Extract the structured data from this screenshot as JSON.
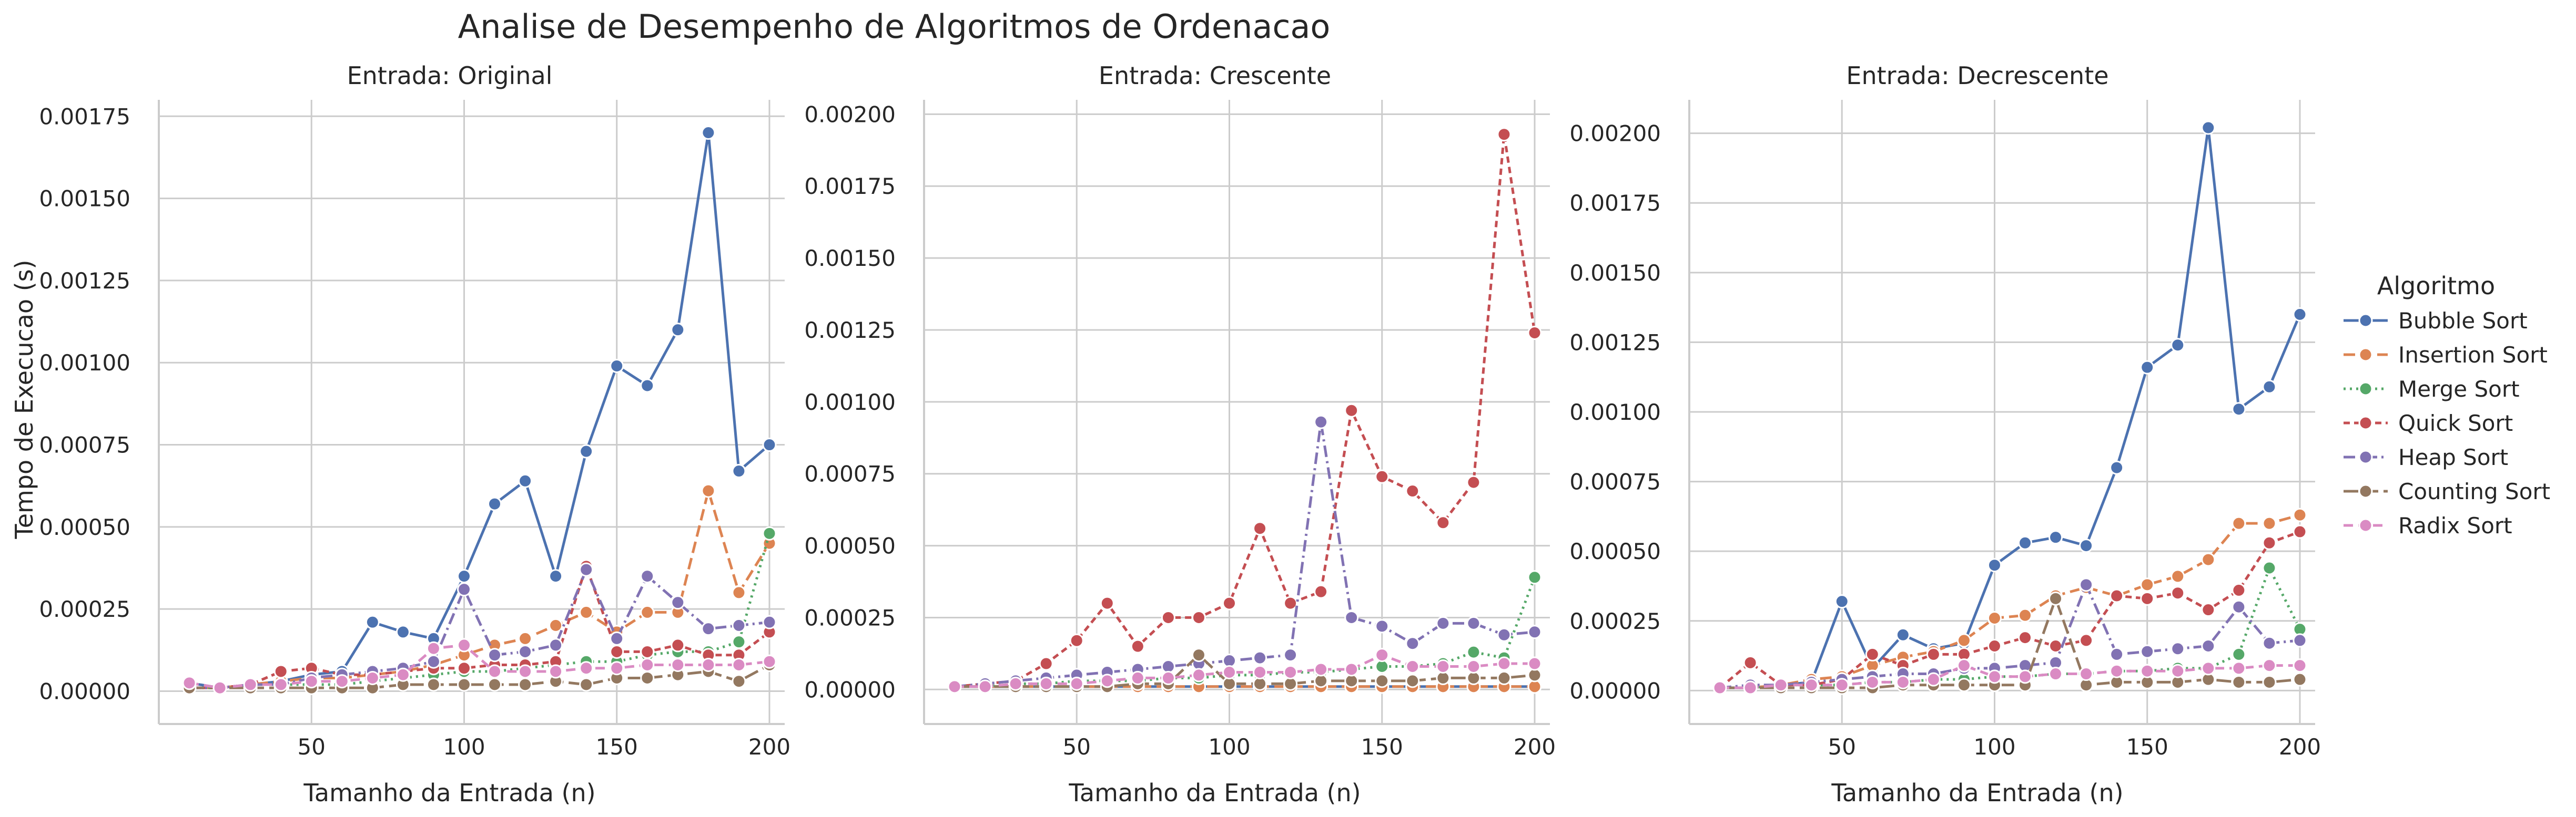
{
  "figure": {
    "title": "Analise de Desempenho de Algoritmos de Ordenacao",
    "ylabel": "Tempo de Execucao (s)"
  },
  "legend": {
    "title": "Algoritmo",
    "items": [
      {
        "label": "Bubble Sort",
        "color": "#4c72b0",
        "dash": "solid"
      },
      {
        "label": "Insertion Sort",
        "color": "#dd8452",
        "dash": "dashed"
      },
      {
        "label": "Merge Sort",
        "color": "#55a868",
        "dash": "dotted"
      },
      {
        "label": "Quick Sort",
        "color": "#c44e52",
        "dash": "dense-dash"
      },
      {
        "label": "Heap Sort",
        "color": "#8172b3",
        "dash": "dashdot"
      },
      {
        "label": "Counting Sort",
        "color": "#937860",
        "dash": "long-dash"
      },
      {
        "label": "Radix Sort",
        "color": "#da8bc3",
        "dash": "dash"
      }
    ]
  },
  "chart_data": [
    {
      "type": "line",
      "title": "Entrada: Original",
      "xlabel": "Tamanho da Entrada (n)",
      "ylabel": "Tempo de Execucao (s)",
      "xlim": [
        0,
        205
      ],
      "ylim": [
        -0.0001,
        0.0018
      ],
      "xticks": [
        50,
        100,
        150,
        200
      ],
      "xtick_labels": [
        "50",
        "100",
        "150",
        "200"
      ],
      "yticks": [
        0,
        0.00025,
        0.0005,
        0.00075,
        0.001,
        0.00125,
        0.0015,
        0.00175
      ],
      "ytick_labels": [
        "0.00000",
        "0.00025",
        "0.00050",
        "0.00075",
        "0.00100",
        "0.00125",
        "0.00150",
        "0.00175"
      ],
      "grid": true,
      "x": [
        10,
        20,
        30,
        40,
        50,
        60,
        70,
        80,
        90,
        100,
        110,
        120,
        130,
        140,
        150,
        160,
        170,
        180,
        190,
        200
      ],
      "series": [
        {
          "name": "Bubble Sort",
          "values": [
            2.5e-05,
            1e-05,
            2e-05,
            3e-05,
            5e-05,
            6e-05,
            0.00021,
            0.00018,
            0.00016,
            0.00035,
            0.00057,
            0.00064,
            0.00035,
            0.00073,
            0.00099,
            0.00093,
            0.0011,
            0.0017,
            0.00067,
            0.00075
          ]
        },
        {
          "name": "Insertion Sort",
          "values": [
            1e-05,
            1e-05,
            2e-05,
            3e-05,
            4e-05,
            4e-05,
            5e-05,
            6e-05,
            8e-05,
            0.00011,
            0.00014,
            0.00016,
            0.0002,
            0.00024,
            0.00018,
            0.00024,
            0.00024,
            0.00061,
            0.0003,
            0.00045
          ]
        },
        {
          "name": "Merge Sort",
          "values": [
            1e-05,
            1e-05,
            2e-05,
            2e-05,
            2e-05,
            2e-05,
            3e-05,
            4e-05,
            5e-05,
            6e-05,
            6e-05,
            7e-05,
            8e-05,
            9e-05,
            9e-05,
            0.00011,
            0.00012,
            0.00012,
            0.00015,
            0.00048
          ]
        },
        {
          "name": "Quick Sort",
          "values": [
            1e-05,
            1e-05,
            2e-05,
            6e-05,
            7e-05,
            5e-05,
            5e-05,
            6e-05,
            7e-05,
            7e-05,
            8e-05,
            8e-05,
            9e-05,
            0.00038,
            0.00012,
            0.00012,
            0.00014,
            0.00011,
            0.00011,
            0.00018
          ]
        },
        {
          "name": "Heap Sort",
          "values": [
            1e-05,
            1e-05,
            2e-05,
            2e-05,
            4e-05,
            5e-05,
            6e-05,
            7e-05,
            9e-05,
            0.00031,
            0.00011,
            0.00012,
            0.00014,
            0.00037,
            0.00016,
            0.00035,
            0.00027,
            0.00019,
            0.0002,
            0.00021
          ]
        },
        {
          "name": "Counting Sort",
          "values": [
            1e-05,
            1e-05,
            1e-05,
            1e-05,
            1e-05,
            1e-05,
            1e-05,
            2e-05,
            2e-05,
            2e-05,
            2e-05,
            2e-05,
            3e-05,
            2e-05,
            4e-05,
            4e-05,
            5e-05,
            6e-05,
            3e-05,
            8e-05
          ]
        },
        {
          "name": "Radix Sort",
          "values": [
            2.5e-05,
            1e-05,
            2e-05,
            2e-05,
            3e-05,
            3e-05,
            4e-05,
            5e-05,
            0.00013,
            0.00014,
            6e-05,
            6e-05,
            6e-05,
            7e-05,
            7e-05,
            8e-05,
            8e-05,
            8e-05,
            8e-05,
            9e-05
          ]
        }
      ]
    },
    {
      "type": "line",
      "title": "Entrada: Crescente",
      "xlabel": "Tamanho da Entrada (n)",
      "ylabel": "",
      "xlim": [
        0,
        205
      ],
      "ylim": [
        -0.00012,
        0.00205
      ],
      "xticks": [
        50,
        100,
        150,
        200
      ],
      "xtick_labels": [
        "50",
        "100",
        "150",
        "200"
      ],
      "yticks": [
        0,
        0.00025,
        0.0005,
        0.00075,
        0.001,
        0.00125,
        0.0015,
        0.00175,
        0.002
      ],
      "ytick_labels": [
        "0.00000",
        "0.00025",
        "0.00050",
        "0.00075",
        "0.00100",
        "0.00125",
        "0.00150",
        "0.00175",
        "0.00200"
      ],
      "grid": true,
      "x": [
        10,
        20,
        30,
        40,
        50,
        60,
        70,
        80,
        90,
        100,
        110,
        120,
        130,
        140,
        150,
        160,
        170,
        180,
        190,
        200
      ],
      "series": [
        {
          "name": "Bubble Sort",
          "values": [
            1e-05,
            1e-05,
            1e-05,
            1e-05,
            1e-05,
            1e-05,
            1e-05,
            1e-05,
            1e-05,
            1e-05,
            1e-05,
            1e-05,
            1e-05,
            1e-05,
            1e-05,
            1e-05,
            1e-05,
            1e-05,
            1e-05,
            1e-05
          ]
        },
        {
          "name": "Insertion Sort",
          "values": [
            1e-05,
            1e-05,
            1e-05,
            1e-05,
            1e-05,
            1e-05,
            1e-05,
            1e-05,
            1e-05,
            1e-05,
            1e-05,
            1e-05,
            1e-05,
            1e-05,
            1e-05,
            1e-05,
            1e-05,
            1e-05,
            1e-05,
            1e-05
          ]
        },
        {
          "name": "Merge Sort",
          "values": [
            1e-05,
            1e-05,
            2e-05,
            2e-05,
            3e-05,
            3e-05,
            3e-05,
            4e-05,
            4e-05,
            5e-05,
            5e-05,
            6e-05,
            6e-05,
            7e-05,
            8e-05,
            8e-05,
            9e-05,
            0.00013,
            0.00011,
            0.00039
          ]
        },
        {
          "name": "Quick Sort",
          "values": [
            1e-05,
            2e-05,
            3e-05,
            9e-05,
            0.00017,
            0.0003,
            0.00015,
            0.00025,
            0.00025,
            0.0003,
            0.00056,
            0.0003,
            0.00034,
            0.00097,
            0.00074,
            0.00069,
            0.00058,
            0.00072,
            0.00193,
            0.00124
          ]
        },
        {
          "name": "Heap Sort",
          "values": [
            1e-05,
            2e-05,
            3e-05,
            4e-05,
            5e-05,
            6e-05,
            7e-05,
            8e-05,
            9e-05,
            0.0001,
            0.00011,
            0.00012,
            0.00093,
            0.00025,
            0.00022,
            0.00016,
            0.00023,
            0.00023,
            0.00019,
            0.0002
          ]
        },
        {
          "name": "Counting Sort",
          "values": [
            1e-05,
            1e-05,
            1e-05,
            1e-05,
            1e-05,
            1e-05,
            2e-05,
            2e-05,
            0.00012,
            2e-05,
            2e-05,
            2e-05,
            3e-05,
            3e-05,
            3e-05,
            3e-05,
            4e-05,
            4e-05,
            4e-05,
            5e-05
          ]
        },
        {
          "name": "Radix Sort",
          "values": [
            1e-05,
            1e-05,
            2e-05,
            2e-05,
            2e-05,
            3e-05,
            4e-05,
            4e-05,
            5e-05,
            6e-05,
            6e-05,
            6e-05,
            7e-05,
            7e-05,
            0.00012,
            8e-05,
            8e-05,
            8e-05,
            9e-05,
            9e-05
          ]
        }
      ]
    },
    {
      "type": "line",
      "title": "Entrada: Decrescente",
      "xlabel": "Tamanho da Entrada (n)",
      "ylabel": "",
      "xlim": [
        0,
        205
      ],
      "ylim": [
        -0.00012,
        0.00212
      ],
      "xticks": [
        50,
        100,
        150,
        200
      ],
      "xtick_labels": [
        "50",
        "100",
        "150",
        "200"
      ],
      "yticks": [
        0,
        0.00025,
        0.0005,
        0.00075,
        0.001,
        0.00125,
        0.0015,
        0.00175,
        0.002
      ],
      "ytick_labels": [
        "0.00000",
        "0.00025",
        "0.00050",
        "0.00075",
        "0.00100",
        "0.00125",
        "0.00150",
        "0.00175",
        "0.00200"
      ],
      "grid": true,
      "x": [
        10,
        20,
        30,
        40,
        50,
        60,
        70,
        80,
        90,
        100,
        110,
        120,
        130,
        140,
        150,
        160,
        170,
        180,
        190,
        200
      ],
      "series": [
        {
          "name": "Bubble Sort",
          "values": [
            1e-05,
            1e-05,
            2e-05,
            3e-05,
            0.00032,
            8e-05,
            0.0002,
            0.00015,
            0.00017,
            0.00045,
            0.00053,
            0.00055,
            0.00052,
            0.0008,
            0.00116,
            0.00124,
            0.00202,
            0.00101,
            0.00109,
            0.00135
          ]
        },
        {
          "name": "Insertion Sort",
          "values": [
            1e-05,
            1e-05,
            2e-05,
            4e-05,
            5e-05,
            9e-05,
            0.00012,
            0.00014,
            0.00018,
            0.00026,
            0.00027,
            0.00034,
            0.00037,
            0.00034,
            0.00038,
            0.00041,
            0.00047,
            0.0006,
            0.0006,
            0.00063
          ]
        },
        {
          "name": "Merge Sort",
          "values": [
            1e-05,
            1e-05,
            2e-05,
            2e-05,
            2e-05,
            3e-05,
            3e-05,
            4e-05,
            4e-05,
            5e-05,
            5e-05,
            6e-05,
            6e-05,
            7e-05,
            7e-05,
            8e-05,
            8e-05,
            0.00013,
            0.00044,
            0.00022
          ]
        },
        {
          "name": "Quick Sort",
          "values": [
            1e-05,
            0.0001,
            2e-05,
            2e-05,
            4e-05,
            0.00013,
            9e-05,
            0.00013,
            0.00013,
            0.00016,
            0.00019,
            0.00016,
            0.00018,
            0.00034,
            0.00033,
            0.00035,
            0.00029,
            0.00036,
            0.00053,
            0.00057
          ]
        },
        {
          "name": "Heap Sort",
          "values": [
            1e-05,
            2e-05,
            2e-05,
            3e-05,
            4e-05,
            5e-05,
            6e-05,
            6e-05,
            8e-05,
            8e-05,
            9e-05,
            0.0001,
            0.00038,
            0.00013,
            0.00014,
            0.00015,
            0.00016,
            0.0003,
            0.00017,
            0.00018
          ]
        },
        {
          "name": "Counting Sort",
          "values": [
            1e-05,
            1e-05,
            1e-05,
            1e-05,
            1e-05,
            1e-05,
            2e-05,
            2e-05,
            2e-05,
            2e-05,
            2e-05,
            0.00033,
            2e-05,
            3e-05,
            3e-05,
            3e-05,
            4e-05,
            3e-05,
            3e-05,
            4e-05
          ]
        },
        {
          "name": "Radix Sort",
          "values": [
            1e-05,
            1e-05,
            2e-05,
            2e-05,
            2e-05,
            3e-05,
            3e-05,
            4e-05,
            9e-05,
            5e-05,
            5e-05,
            6e-05,
            6e-05,
            7e-05,
            7e-05,
            7e-05,
            8e-05,
            8e-05,
            9e-05,
            9e-05
          ]
        }
      ]
    }
  ]
}
